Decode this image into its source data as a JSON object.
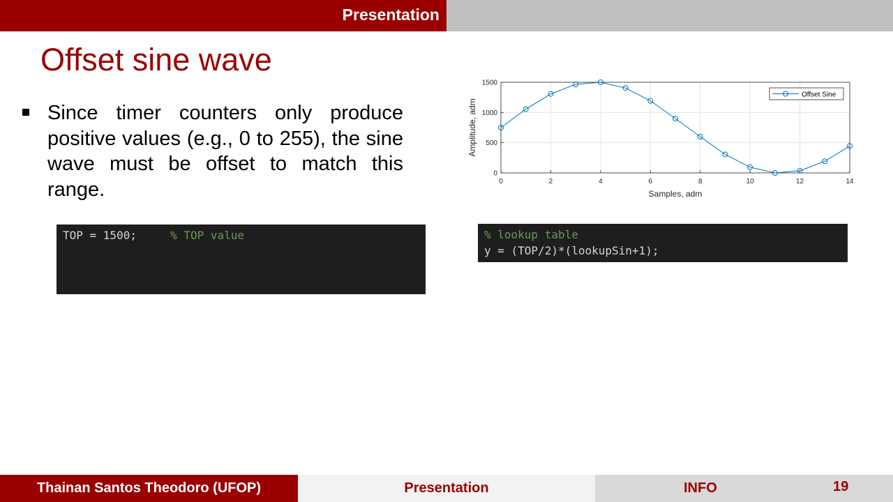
{
  "header": {
    "section_label": "Presentation"
  },
  "slide": {
    "title": "Offset sine wave",
    "bullet": "Since timer counters only produce positive values (e.g., 0 to 255), the sine wave must be offset to match this range."
  },
  "code_left": {
    "code": "TOP = 1500;     ",
    "comment": "% TOP value"
  },
  "code_right": {
    "comment": "% lookup table",
    "line2": "y = (TOP/2)*(lookupSin+1);"
  },
  "chart_data": {
    "type": "line",
    "title": "",
    "xlabel": "Samples, adm",
    "ylabel": "Amplitude, adm",
    "xlim": [
      0,
      14
    ],
    "ylim": [
      0,
      1500
    ],
    "xticks": [
      "0",
      "2",
      "4",
      "6",
      "8",
      "10",
      "12",
      "14"
    ],
    "yticks": [
      "0",
      "500",
      "1000",
      "1500"
    ],
    "grid": true,
    "legend_position": "top-right",
    "series": [
      {
        "name": "Offset Sine",
        "color": "#0072bd",
        "x": [
          0,
          1,
          2,
          3,
          4,
          5,
          6,
          7,
          8,
          9,
          10,
          11,
          12,
          13,
          14
        ],
        "y": [
          750,
          1055,
          1307,
          1465,
          1500,
          1405,
          1194,
          900,
          600,
          306,
          95,
          0,
          35,
          193,
          445
        ]
      }
    ]
  },
  "footer": {
    "author": "Thainan Santos Theodoro (UFOP)",
    "presentation": "Presentation",
    "info": "INFO",
    "page_number": "19"
  }
}
